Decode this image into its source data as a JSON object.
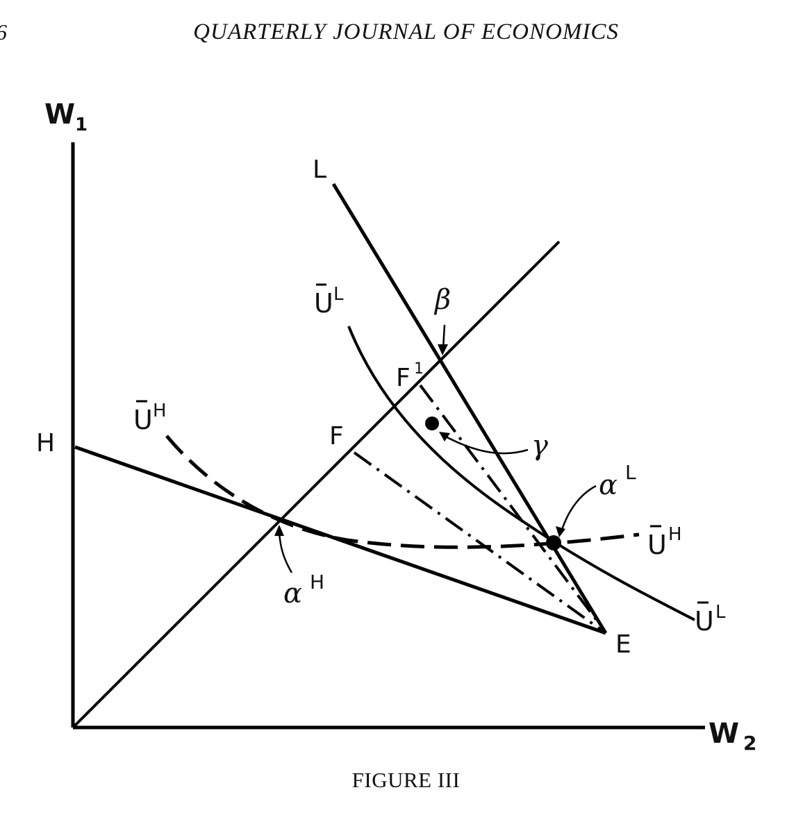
{
  "header": {
    "page_number": "6",
    "running_title": "QUARTERLY JOURNAL OF ECONOMICS"
  },
  "figure": {
    "caption": "FIGURE III",
    "axes": {
      "y_label": "W",
      "y_sub": "1",
      "x_label": "W",
      "x_sub": "2"
    },
    "points": {
      "H": "H",
      "E": "E",
      "L": "L",
      "F": "F",
      "F1": "F",
      "F1_sup": "1",
      "beta": "β",
      "gamma": "γ",
      "alpha": "α",
      "alpha_L_sup": "L",
      "alpha_H_sup": "H"
    },
    "curves": {
      "U_base": "U",
      "UL_sup": "L",
      "UH_sup": "H"
    }
  }
}
